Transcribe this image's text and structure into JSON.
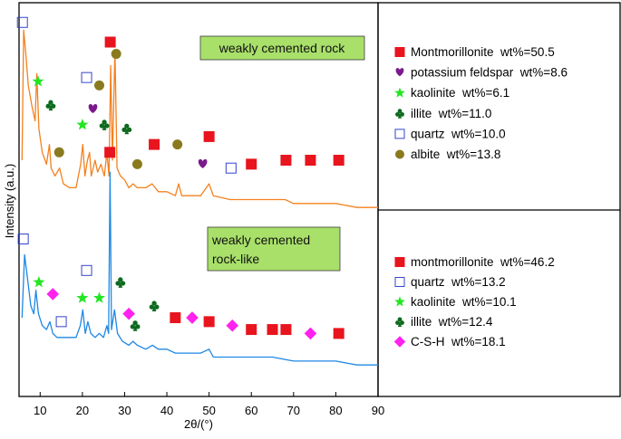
{
  "chart_data": {
    "type": "line",
    "xlabel": "2θ/(°)",
    "ylabel": "Intensity (a.u.)",
    "xlim": [
      5,
      90
    ],
    "xticks": [
      "10",
      "20",
      "30",
      "40",
      "50",
      "60",
      "70",
      "80",
      "90"
    ],
    "xtick_values": [
      10,
      20,
      30,
      40,
      50,
      60,
      70,
      80,
      90
    ],
    "ylim": [
      0,
      100
    ],
    "colors": {
      "orange": "#f4811f",
      "blue": "#1e88e5",
      "red": "#e8141e",
      "purple": "#7a1a8c",
      "green": "#22e622",
      "dark_green": "#0d6a1e",
      "square_blue": "#3344cc",
      "olive": "#8a7a1e",
      "magenta": "#ff22ee",
      "label_bg": "#a8e06a"
    },
    "series": [
      {
        "name": "weakly cemented rock",
        "color": "#f4811f",
        "points": [
          [
            5.7,
            60
          ],
          [
            6.1,
            93
          ],
          [
            6.6,
            87
          ],
          [
            7.2,
            79
          ],
          [
            8,
            74
          ],
          [
            8.8,
            70
          ],
          [
            9.2,
            82
          ],
          [
            9.7,
            68
          ],
          [
            10.5,
            62
          ],
          [
            11.5,
            59
          ],
          [
            12.2,
            64
          ],
          [
            12.6,
            58
          ],
          [
            13.5,
            56
          ],
          [
            14.6,
            58
          ],
          [
            15.5,
            54
          ],
          [
            17,
            53
          ],
          [
            18.5,
            53
          ],
          [
            19.6,
            59
          ],
          [
            20.1,
            64
          ],
          [
            20.6,
            56
          ],
          [
            21.2,
            60
          ],
          [
            21.7,
            62
          ],
          [
            22.1,
            56
          ],
          [
            23,
            60
          ],
          [
            23.6,
            57
          ],
          [
            24.4,
            59
          ],
          [
            25.2,
            56
          ],
          [
            25.8,
            62
          ],
          [
            26.3,
            56
          ],
          [
            26.7,
            84
          ],
          [
            27.1,
            60
          ],
          [
            27.7,
            88
          ],
          [
            28.2,
            58
          ],
          [
            29,
            56
          ],
          [
            30,
            55
          ],
          [
            31,
            53
          ],
          [
            32,
            54
          ],
          [
            33,
            53
          ],
          [
            35,
            53
          ],
          [
            36.5,
            54
          ],
          [
            38,
            52
          ],
          [
            40,
            52
          ],
          [
            42,
            51
          ],
          [
            42.8,
            54
          ],
          [
            43.5,
            51
          ],
          [
            45,
            51
          ],
          [
            48,
            51
          ],
          [
            50,
            54
          ],
          [
            51,
            51
          ],
          [
            55,
            50
          ],
          [
            60,
            50
          ],
          [
            62,
            50
          ],
          [
            65,
            50
          ],
          [
            68,
            50
          ],
          [
            70,
            49
          ],
          [
            75,
            49
          ],
          [
            80,
            49
          ],
          [
            85,
            48
          ],
          [
            90,
            48
          ]
        ]
      },
      {
        "name": "weakly cemented rock-like",
        "color": "#1e88e5",
        "points": [
          [
            5.7,
            20
          ],
          [
            6.3,
            36
          ],
          [
            7,
            30
          ],
          [
            7.8,
            23
          ],
          [
            8.5,
            21
          ],
          [
            9,
            27
          ],
          [
            9.6,
            21
          ],
          [
            10.5,
            18
          ],
          [
            11.5,
            17
          ],
          [
            12.3,
            19
          ],
          [
            13,
            16
          ],
          [
            14,
            15
          ],
          [
            15.5,
            15
          ],
          [
            17,
            15
          ],
          [
            18.5,
            15
          ],
          [
            19.5,
            18
          ],
          [
            20.1,
            22
          ],
          [
            20.7,
            16
          ],
          [
            21.3,
            19
          ],
          [
            22,
            16
          ],
          [
            23,
            15
          ],
          [
            24,
            16
          ],
          [
            25,
            15
          ],
          [
            25.8,
            18
          ],
          [
            26.2,
            16
          ],
          [
            26.55,
            57
          ],
          [
            26.9,
            17
          ],
          [
            27.6,
            22
          ],
          [
            28.3,
            16
          ],
          [
            29.5,
            14
          ],
          [
            31,
            13
          ],
          [
            32,
            14
          ],
          [
            33,
            13
          ],
          [
            35,
            12
          ],
          [
            36.6,
            13
          ],
          [
            38,
            12
          ],
          [
            40,
            12
          ],
          [
            42,
            11
          ],
          [
            44,
            11
          ],
          [
            48,
            11
          ],
          [
            50,
            12
          ],
          [
            51,
            10
          ],
          [
            55,
            10
          ],
          [
            60,
            10
          ],
          [
            65,
            10
          ],
          [
            70,
            9
          ],
          [
            75,
            9
          ],
          [
            80,
            9
          ],
          [
            85,
            8
          ],
          [
            90,
            8
          ]
        ]
      }
    ],
    "markers_top": [
      {
        "type": "square",
        "color": "#3344cc",
        "x": 5.8,
        "y": 95
      },
      {
        "type": "star",
        "color": "#22e622",
        "x": 9.5,
        "y": 80
      },
      {
        "type": "club",
        "color": "#0d6a1e",
        "x": 12.5,
        "y": 74
      },
      {
        "type": "circle",
        "color": "#8a7a1e",
        "x": 14.5,
        "y": 62
      },
      {
        "type": "star",
        "color": "#22e622",
        "x": 20,
        "y": 69
      },
      {
        "type": "square",
        "color": "#3344cc",
        "x": 21,
        "y": 81
      },
      {
        "type": "heart",
        "color": "#7a1a8c",
        "x": 22.5,
        "y": 73
      },
      {
        "type": "circle",
        "color": "#8a7a1e",
        "x": 24,
        "y": 79
      },
      {
        "type": "club",
        "color": "#0d6a1e",
        "x": 25.2,
        "y": 69
      },
      {
        "type": "square",
        "color": "#e8141e",
        "x": 26.6,
        "y": 90
      },
      {
        "type": "circle",
        "color": "#8a7a1e",
        "x": 28,
        "y": 87
      },
      {
        "type": "club",
        "color": "#0d6a1e",
        "x": 30.5,
        "y": 68
      },
      {
        "type": "circle",
        "color": "#8a7a1e",
        "x": 33,
        "y": 59
      },
      {
        "type": "square",
        "color": "#e8141e",
        "x": 37,
        "y": 64
      },
      {
        "type": "circle",
        "color": "#8a7a1e",
        "x": 42.5,
        "y": 64
      },
      {
        "type": "heart",
        "color": "#7a1a8c",
        "x": 48.5,
        "y": 59
      },
      {
        "type": "square",
        "color": "#e8141e",
        "x": 50,
        "y": 66
      },
      {
        "type": "square",
        "color": "#3344cc",
        "x": 55.2,
        "y": 58
      },
      {
        "type": "square",
        "color": "#e8141e",
        "x": 60,
        "y": 59
      },
      {
        "type": "square",
        "color": "#e8141e",
        "x": 68.2,
        "y": 60
      },
      {
        "type": "square",
        "color": "#e8141e",
        "x": 74,
        "y": 60
      },
      {
        "type": "square",
        "color": "#e8141e",
        "x": 80.7,
        "y": 60
      }
    ],
    "markers_bottom": [
      {
        "type": "square",
        "color": "#3344cc",
        "x": 6,
        "y": 40
      },
      {
        "type": "star",
        "color": "#22e622",
        "x": 9.7,
        "y": 29
      },
      {
        "type": "diamond",
        "color": "#ff22ee",
        "x": 13,
        "y": 26
      },
      {
        "type": "square",
        "color": "#3344cc",
        "x": 15,
        "y": 19
      },
      {
        "type": "star",
        "color": "#22e622",
        "x": 20,
        "y": 25
      },
      {
        "type": "square",
        "color": "#3344cc",
        "x": 21,
        "y": 32
      },
      {
        "type": "star",
        "color": "#22e622",
        "x": 24,
        "y": 25
      },
      {
        "type": "square",
        "color": "#e8141e",
        "x": 26.5,
        "y": 62
      },
      {
        "type": "club",
        "color": "#0d6a1e",
        "x": 29,
        "y": 29
      },
      {
        "type": "diamond",
        "color": "#ff22ee",
        "x": 31,
        "y": 21
      },
      {
        "type": "club",
        "color": "#0d6a1e",
        "x": 32.5,
        "y": 18
      },
      {
        "type": "club",
        "color": "#0d6a1e",
        "x": 37,
        "y": 23
      },
      {
        "type": "square",
        "color": "#e8141e",
        "x": 42,
        "y": 20
      },
      {
        "type": "diamond",
        "color": "#ff22ee",
        "x": 46,
        "y": 20
      },
      {
        "type": "square",
        "color": "#e8141e",
        "x": 50,
        "y": 19
      },
      {
        "type": "diamond",
        "color": "#ff22ee",
        "x": 55.5,
        "y": 18
      },
      {
        "type": "square",
        "color": "#e8141e",
        "x": 60,
        "y": 17
      },
      {
        "type": "square",
        "color": "#e8141e",
        "x": 65,
        "y": 17
      },
      {
        "type": "square",
        "color": "#e8141e",
        "x": 68.2,
        "y": 17
      },
      {
        "type": "diamond",
        "color": "#ff22ee",
        "x": 74,
        "y": 16
      },
      {
        "type": "square",
        "color": "#e8141e",
        "x": 80.7,
        "y": 16
      }
    ],
    "annotations": [
      {
        "id": "top",
        "lines": [
          "weakly cemented rock"
        ]
      },
      {
        "id": "bottom",
        "lines": [
          "weakly cemented",
          "rock-like"
        ]
      }
    ],
    "legend_top": [
      {
        "symbol": "square",
        "color": "#e8141e",
        "text": "Montmorillonite  wt%=50.5"
      },
      {
        "symbol": "heart",
        "color": "#7a1a8c",
        "text": "potassium feldspar  wt%=8.6"
      },
      {
        "symbol": "star",
        "color": "#22e622",
        "text": "kaolinite  wt%=6.1"
      },
      {
        "symbol": "club",
        "color": "#0d6a1e",
        "text": "illite  wt%=11.0"
      },
      {
        "symbol": "square",
        "color": "#3344cc",
        "text": "quartz  wt%=10.0"
      },
      {
        "symbol": "circle",
        "color": "#8a7a1e",
        "text": "albite  wt%=13.8"
      }
    ],
    "legend_bottom": [
      {
        "symbol": "square",
        "color": "#e8141e",
        "text": "montmorillonite  wt%=46.2"
      },
      {
        "symbol": "square",
        "color": "#3344cc",
        "text": "quartz  wt%=13.2"
      },
      {
        "symbol": "star",
        "color": "#22e622",
        "text": "kaolinite  wt%=10.1"
      },
      {
        "symbol": "club",
        "color": "#0d6a1e",
        "text": "illite  wt%=12.4"
      },
      {
        "symbol": "diamond",
        "color": "#ff22ee",
        "text": "C-S-H  wt%=18.1"
      }
    ]
  }
}
